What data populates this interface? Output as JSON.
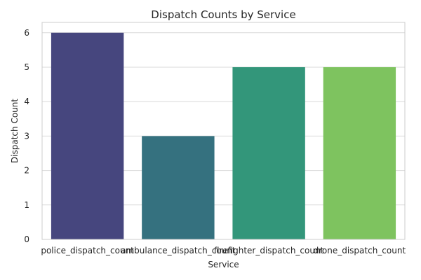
{
  "chart_data": {
    "type": "bar",
    "title": "Dispatch Counts by Service",
    "xlabel": "Service",
    "ylabel": "Dispatch Count",
    "categories": [
      "police_dispatch_count",
      "ambulance_dispatch_count",
      "firefighter_dispatch_count",
      "drone_dispatch_count"
    ],
    "values": [
      6,
      3,
      5,
      5
    ],
    "colors": [
      "#46467e",
      "#35717f",
      "#33967a",
      "#7ec35f"
    ],
    "ylim": [
      0,
      6.3
    ],
    "yticks": [
      "0",
      "1",
      "2",
      "3",
      "4",
      "5",
      "6"
    ],
    "grid": true,
    "legend": "none"
  }
}
